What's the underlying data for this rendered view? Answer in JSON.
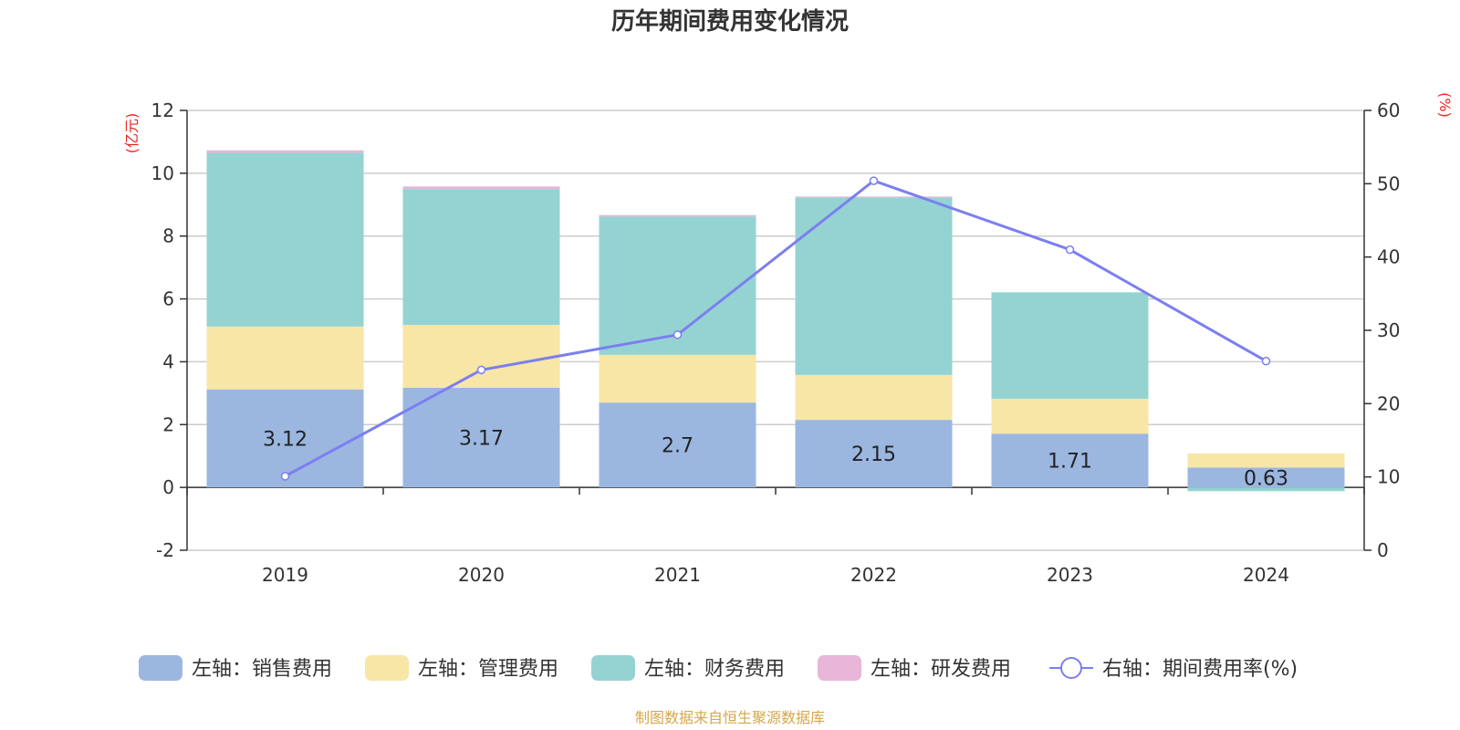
{
  "chart_data": {
    "type": "bar",
    "stacked": true,
    "title": "历年期间费用变化情况",
    "categories": [
      "2019",
      "2020",
      "2021",
      "2022",
      "2023",
      "2024"
    ],
    "left_axis": {
      "unit": "(亿元)",
      "ylim": [
        -2,
        12
      ],
      "ticks": [
        -2,
        0,
        2,
        4,
        6,
        8,
        10,
        12
      ]
    },
    "right_axis": {
      "unit": "(%)",
      "ylim": [
        0,
        60
      ],
      "ticks": [
        0,
        10,
        20,
        30,
        40,
        50,
        60
      ]
    },
    "series": [
      {
        "name": "左轴：销售费用",
        "axis": "left",
        "type": "bar",
        "color": "#9bb7e0",
        "values": [
          3.12,
          3.17,
          2.7,
          2.15,
          1.71,
          0.63
        ],
        "show_labels": true
      },
      {
        "name": "左轴：管理费用",
        "axis": "left",
        "type": "bar",
        "color": "#f7e6a6",
        "values": [
          2.0,
          2.0,
          1.52,
          1.43,
          1.11,
          0.45
        ]
      },
      {
        "name": "左轴：财务费用",
        "axis": "left",
        "type": "bar",
        "color": "#95d3d3",
        "values": [
          5.53,
          4.33,
          4.4,
          5.65,
          3.39,
          -0.12
        ]
      },
      {
        "name": "左轴：研发费用",
        "axis": "left",
        "type": "bar",
        "color": "#e7b6d8",
        "values": [
          0.08,
          0.08,
          0.05,
          0.03,
          0.0,
          0.0
        ]
      },
      {
        "name": "右轴：期间费用率(%)",
        "axis": "right",
        "type": "line",
        "color": "#7b7ff0",
        "values": [
          10.1,
          24.6,
          29.4,
          50.4,
          41.0,
          25.8
        ]
      }
    ],
    "legend_position": "bottom-center"
  },
  "source": {
    "text": "制图数据来自恒生聚源数据库",
    "color": "#d4a84a"
  },
  "colors": {
    "axis_unit": "#e8251e",
    "grid": "#cccccc",
    "axis": "#333333"
  }
}
